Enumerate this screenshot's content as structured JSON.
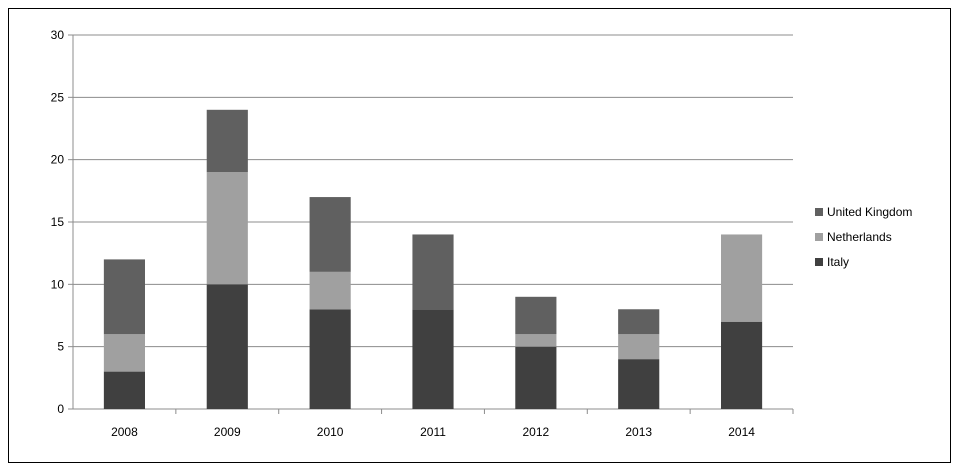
{
  "chart_data": {
    "type": "bar",
    "stacked": true,
    "categories": [
      "2008",
      "2009",
      "2010",
      "2011",
      "2012",
      "2013",
      "2014"
    ],
    "series": [
      {
        "name": "Italy",
        "values": [
          3,
          10,
          8,
          8,
          5,
          4,
          7
        ],
        "color": "#404040"
      },
      {
        "name": "Netherlands",
        "values": [
          3,
          9,
          3,
          0,
          1,
          2,
          7
        ],
        "color": "#a0a0a0"
      },
      {
        "name": "United Kingdom",
        "values": [
          6,
          5,
          6,
          6,
          3,
          2,
          0
        ],
        "color": "#606060"
      }
    ],
    "ylim": [
      0,
      30
    ],
    "yticks": [
      "0",
      "5",
      "10",
      "15",
      "20",
      "25",
      "30"
    ],
    "grid": true,
    "legend": "right",
    "legend_order": [
      "United Kingdom",
      "Netherlands",
      "Italy"
    ],
    "title": "",
    "xlabel": "",
    "ylabel": ""
  }
}
